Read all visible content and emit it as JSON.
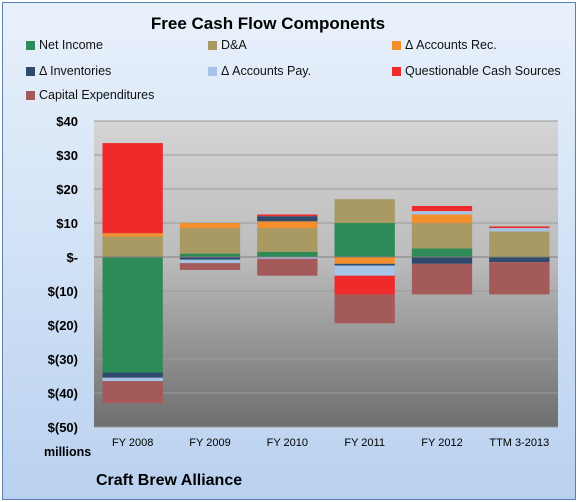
{
  "chart_data": {
    "type": "bar",
    "stacked": true,
    "title": "Free Cash Flow Components",
    "xlabel": "",
    "ylabel": "",
    "units_label": "millions",
    "footer": "Craft Brew Alliance",
    "categories": [
      "FY 2008",
      "FY 2009",
      "FY 2010",
      "FY 2011",
      "FY 2012",
      "TTM 3-2013"
    ],
    "ylim": [
      -50,
      40
    ],
    "yticks": [
      40,
      30,
      20,
      10,
      0,
      -10,
      -20,
      -30,
      -40,
      -50
    ],
    "ytick_labels": [
      "$40",
      "$30",
      "$20",
      "$10",
      "$-",
      "$(10)",
      "$(20)",
      "$(30)",
      "$(40)",
      "$(50)"
    ],
    "grid": true,
    "legend_position": "top",
    "series": [
      {
        "name": "Net Income",
        "color": "#2e8b57",
        "values": [
          -34,
          1,
          1.5,
          10,
          2.5,
          0
        ]
      },
      {
        "name": "D&A",
        "color": "#a89a62",
        "values": [
          6,
          7.5,
          7,
          7,
          7.5,
          7.5
        ]
      },
      {
        "name": "Δ Accounts Rec.",
        "color": "#f28e2b",
        "values": [
          1,
          1.5,
          2,
          -2,
          2.5,
          0
        ]
      },
      {
        "name": "Δ Inventories",
        "color": "#2f4a6d",
        "values": [
          -1.5,
          -0.8,
          1.5,
          -0.5,
          -2,
          -1.5
        ]
      },
      {
        "name": "Δ Accounts Pay.",
        "color": "#a6c3e8",
        "values": [
          -1,
          -1,
          -0.5,
          -3,
          1,
          1
        ]
      },
      {
        "name": "Questionable Cash Sources",
        "color": "#ee2a2a",
        "values": [
          26.5,
          0,
          0.5,
          -5.5,
          1.5,
          0.5
        ]
      },
      {
        "name": "Capital Expenditures",
        "color": "#a55a5a",
        "values": [
          -6.5,
          -2,
          -5,
          -8.5,
          -9,
          -9.5
        ]
      }
    ]
  }
}
